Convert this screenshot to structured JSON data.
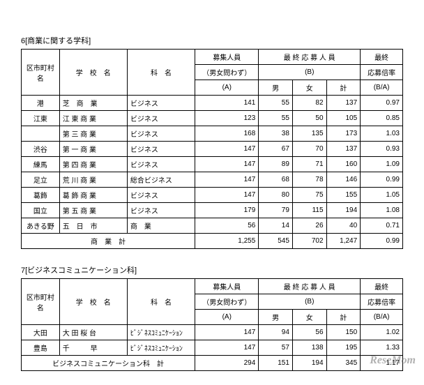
{
  "section6": {
    "title": "6[商業に関する学科]",
    "headers": {
      "city": "区市町村名",
      "school": "学　校　名",
      "dept": "科　名",
      "recruit_top": "募集人員",
      "recruit_mid": "（男女問わず）",
      "recruit_a": "(A)",
      "final_top": "最 終 応 募 人 員",
      "final_b": "(B)",
      "male": "男",
      "female": "女",
      "total": "計",
      "rate_top": "最終",
      "rate_mid": "応募倍率",
      "rate_ba": "(B/A)"
    },
    "rows": [
      {
        "city": "港",
        "school": "芝　商　業",
        "dept": "ビジネス",
        "rec": 141,
        "m": 55,
        "f": 82,
        "t": 137,
        "r": "0.97"
      },
      {
        "city": "江東",
        "school": "江 東 商 業",
        "dept": "ビジネス",
        "rec": 123,
        "m": 55,
        "f": 50,
        "t": 105,
        "r": "0.85"
      },
      {
        "city": "",
        "school": "第 三 商 業",
        "dept": "ビジネス",
        "rec": 168,
        "m": 38,
        "f": 135,
        "t": 173,
        "r": "1.03"
      },
      {
        "city": "渋谷",
        "school": "第 一 商 業",
        "dept": "ビジネス",
        "rec": 147,
        "m": 67,
        "f": 70,
        "t": 137,
        "r": "0.93"
      },
      {
        "city": "練馬",
        "school": "第 四 商 業",
        "dept": "ビジネス",
        "rec": 147,
        "m": 89,
        "f": 71,
        "t": 160,
        "r": "1.09"
      },
      {
        "city": "足立",
        "school": "荒 川 商 業",
        "dept": "総合ビジネス",
        "rec": 147,
        "m": 68,
        "f": 78,
        "t": 146,
        "r": "0.99"
      },
      {
        "city": "葛飾",
        "school": "葛 飾 商 業",
        "dept": "ビジネス",
        "rec": 147,
        "m": 80,
        "f": 75,
        "t": 155,
        "r": "1.05"
      },
      {
        "city": "国立",
        "school": "第 五 商 業",
        "dept": "ビジネス",
        "rec": 179,
        "m": 79,
        "f": 115,
        "t": 194,
        "r": "1.08"
      },
      {
        "city": "あきる野",
        "school": "五　日　市",
        "dept": "商　業",
        "rec": 56,
        "m": 14,
        "f": 26,
        "t": 40,
        "r": "0.71"
      }
    ],
    "total": {
      "label": "商　業　計",
      "rec": "1,255",
      "m": 545,
      "f": 702,
      "t": "1,247",
      "r": "0.99"
    }
  },
  "section7": {
    "title": "7[ビジネスコミュニケーション科]",
    "headers": {
      "city": "区市町村名",
      "school": "学　校　名",
      "dept": "科　名",
      "recruit_top": "募集人員",
      "recruit_mid": "（男女問わず）",
      "recruit_a": "(A)",
      "final_top": "最 終 応 募 人 員",
      "final_b": "(B)",
      "male": "男",
      "female": "女",
      "total": "計",
      "rate_top": "最終",
      "rate_mid": "応募倍率",
      "rate_ba": "(B/A)"
    },
    "rows": [
      {
        "city": "大田",
        "school": "大 田 桜 台",
        "dept": "ﾋﾞｼﾞﾈｽｺﾐｭﾆｹｰｼｮﾝ",
        "rec": 147,
        "m": 94,
        "f": 56,
        "t": 150,
        "r": "1.02"
      },
      {
        "city": "豊島",
        "school": "千　　　早",
        "dept": "ﾋﾞｼﾞﾈｽｺﾐｭﾆｹｰｼｮﾝ",
        "rec": 147,
        "m": 57,
        "f": 138,
        "t": 195,
        "r": "1.33"
      }
    ],
    "total": {
      "label": "ビジネスコミュニケーション科　計",
      "rec": 294,
      "m": 151,
      "f": 194,
      "t": 345,
      "r": "1.17"
    }
  },
  "watermark": "ReseMom"
}
